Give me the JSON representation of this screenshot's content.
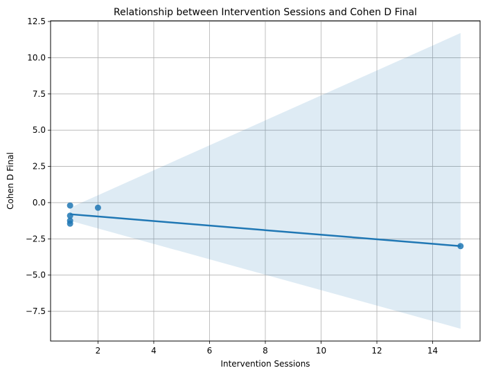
{
  "chart_data": {
    "type": "scatter",
    "title": "Relationship between Intervention Sessions and Cohen D Final",
    "xlabel": "Intervention Sessions",
    "ylabel": "Cohen D Final",
    "xlim": [
      0.3,
      15.7
    ],
    "ylim": [
      -9.55,
      12.55
    ],
    "grid": true,
    "x_ticks": [
      2,
      4,
      6,
      8,
      10,
      12,
      14
    ],
    "x_tick_labels": [
      "2",
      "4",
      "6",
      "8",
      "10",
      "12",
      "14"
    ],
    "y_ticks": [
      -7.5,
      -5.0,
      -2.5,
      0.0,
      2.5,
      5.0,
      7.5,
      10.0,
      12.5
    ],
    "y_tick_labels": [
      "−7.5",
      "−5.0",
      "−2.5",
      "0.0",
      "2.5",
      "5.0",
      "7.5",
      "10.0",
      "12.5"
    ],
    "points": [
      {
        "x": 1,
        "y": -0.2
      },
      {
        "x": 1,
        "y": -0.9
      },
      {
        "x": 1,
        "y": -1.25
      },
      {
        "x": 1,
        "y": -1.45
      },
      {
        "x": 2,
        "y": -0.35
      },
      {
        "x": 15,
        "y": -3.0
      }
    ],
    "regression": {
      "x": [
        1,
        15
      ],
      "y": [
        -0.8,
        -3.0
      ],
      "ci_upper": [
        -0.35,
        11.7
      ],
      "ci_lower": [
        -1.25,
        -8.7
      ]
    },
    "colors": {
      "points": "#1f77b4",
      "line": "#1f77b4",
      "band": "#1f77b4",
      "grid": "#b0b0b0"
    }
  }
}
